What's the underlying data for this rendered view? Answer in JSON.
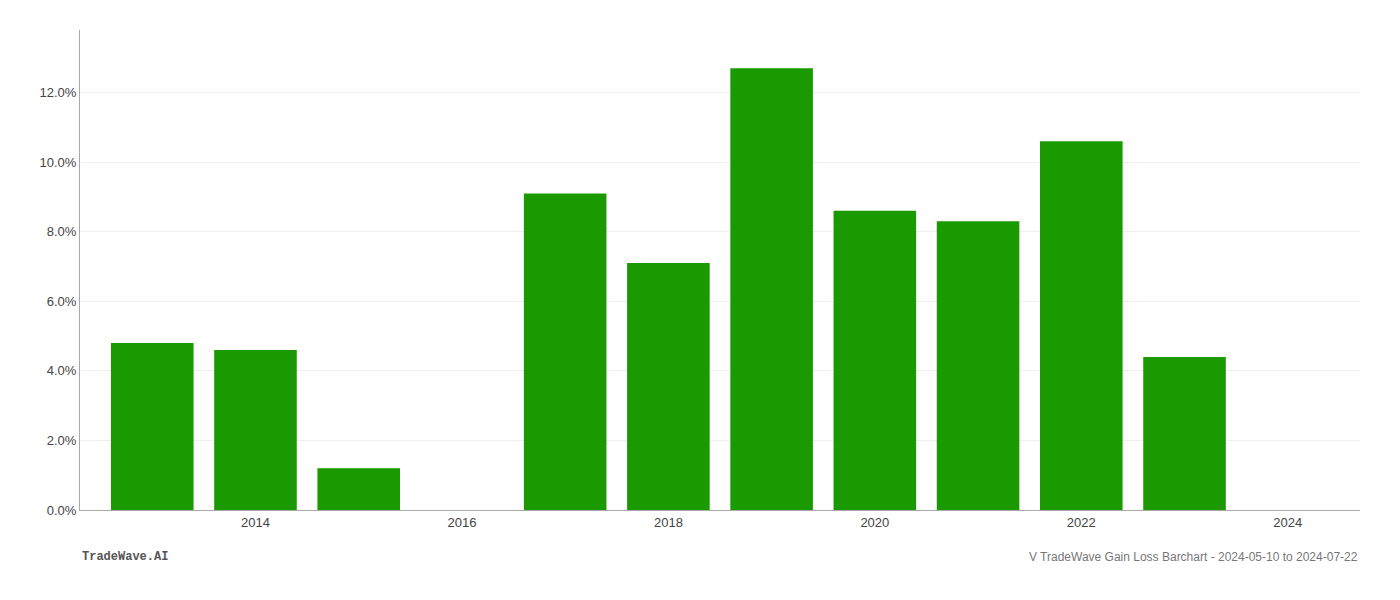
{
  "chart_data": {
    "type": "bar",
    "x": [
      2013,
      2014,
      2015,
      2017,
      2018,
      2019,
      2020,
      2021,
      2022,
      2023
    ],
    "values": [
      0.048,
      0.046,
      0.012,
      0.091,
      0.071,
      0.127,
      0.086,
      0.083,
      0.106,
      0.044
    ],
    "color": "#1a9a00",
    "xlim": [
      2012.3,
      2024.7
    ],
    "xticks": [
      2014,
      2016,
      2018,
      2020,
      2022,
      2024
    ],
    "ylim": [
      0,
      0.138
    ],
    "yticks": [
      {
        "value": 0.0,
        "label": "0.0%"
      },
      {
        "value": 0.02,
        "label": "2.0%"
      },
      {
        "value": 0.04,
        "label": "4.0%"
      },
      {
        "value": 0.06,
        "label": "6.0%"
      },
      {
        "value": 0.08,
        "label": "8.0%"
      },
      {
        "value": 0.1,
        "label": "10.0%"
      },
      {
        "value": 0.12,
        "label": "12.0%"
      }
    ],
    "grid": true,
    "annotations": [
      "TradeWave.AI",
      "V TradeWave Gain Loss Barchart - 2024-05-10 to 2024-07-22"
    ]
  }
}
